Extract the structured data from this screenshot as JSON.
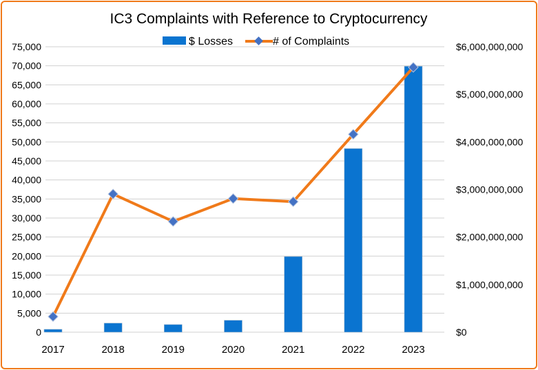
{
  "chart_data": {
    "type": "bar+line",
    "title": "IC3 Complaints with Reference to Cryptocurrency",
    "categories": [
      "2017",
      "2018",
      "2019",
      "2020",
      "2021",
      "2022",
      "2023"
    ],
    "series": [
      {
        "name": "$ Losses",
        "type": "bar",
        "axis": "right",
        "color": "#0a74d0",
        "values": [
          60000000,
          190000000,
          160000000,
          250000000,
          1590000000,
          3860000000,
          5590000000
        ]
      },
      {
        "name": "# of Complaints",
        "type": "line",
        "axis": "left",
        "color": "#f07a1a",
        "marker_color": "#4472c4",
        "values": [
          4100,
          36300,
          29100,
          35100,
          34300,
          52000,
          69600
        ]
      }
    ],
    "left_axis": {
      "range": [
        0,
        75000
      ],
      "ticks": [
        "0",
        "5,000",
        "10,000",
        "15,000",
        "20,000",
        "25,000",
        "30,000",
        "35,000",
        "40,000",
        "45,000",
        "50,000",
        "55,000",
        "60,000",
        "65,000",
        "70,000",
        "75,000"
      ]
    },
    "right_axis": {
      "range": [
        0,
        6000000000
      ],
      "ticks": [
        "$0",
        "$1,000,000,000",
        "$2,000,000,000",
        "$3,000,000,000",
        "$4,000,000,000",
        "$5,000,000,000",
        "$6,000,000,000"
      ]
    },
    "grid": true,
    "legend": "top"
  }
}
